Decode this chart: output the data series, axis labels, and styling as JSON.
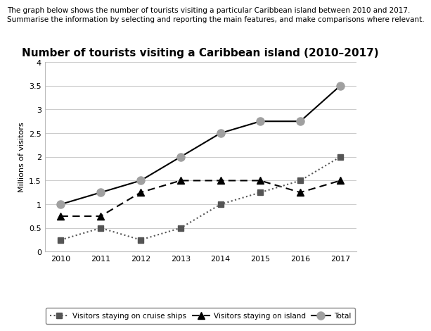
{
  "title": "Number of tourists visiting a Caribbean island (2010–2017)",
  "header_line1": "The graph below shows the number of tourists visiting a particular Caribbean island between 2010 and 2017.",
  "header_line2": "Summarise the information by selecting and reporting the main features, and make comparisons where relevant.",
  "ylabel": "Millions of visitors",
  "years": [
    2010,
    2011,
    2012,
    2013,
    2014,
    2015,
    2016,
    2017
  ],
  "total": [
    1.0,
    1.25,
    1.5,
    2.0,
    2.5,
    2.75,
    2.75,
    3.5
  ],
  "island": [
    0.75,
    0.75,
    1.25,
    1.5,
    1.5,
    1.5,
    1.25,
    1.5
  ],
  "cruise": [
    0.25,
    0.5,
    0.25,
    0.5,
    1.0,
    1.25,
    1.5,
    2.0
  ],
  "ylim": [
    0,
    4
  ],
  "yticks": [
    0,
    0.5,
    1.0,
    1.5,
    2.0,
    2.5,
    3.0,
    3.5,
    4.0
  ],
  "total_marker_color": "#a0a0a0",
  "total_line_color": "#000000",
  "island_color": "#000000",
  "cruise_color": "#555555",
  "grid_color": "#cccccc",
  "legend_cruise": "Visitors staying on cruise ships",
  "legend_island": "Visitors staying on island",
  "legend_total": "Total",
  "title_fontsize": 11,
  "axis_fontsize": 8,
  "header_fontsize": 7.5,
  "ylabel_fontsize": 8
}
